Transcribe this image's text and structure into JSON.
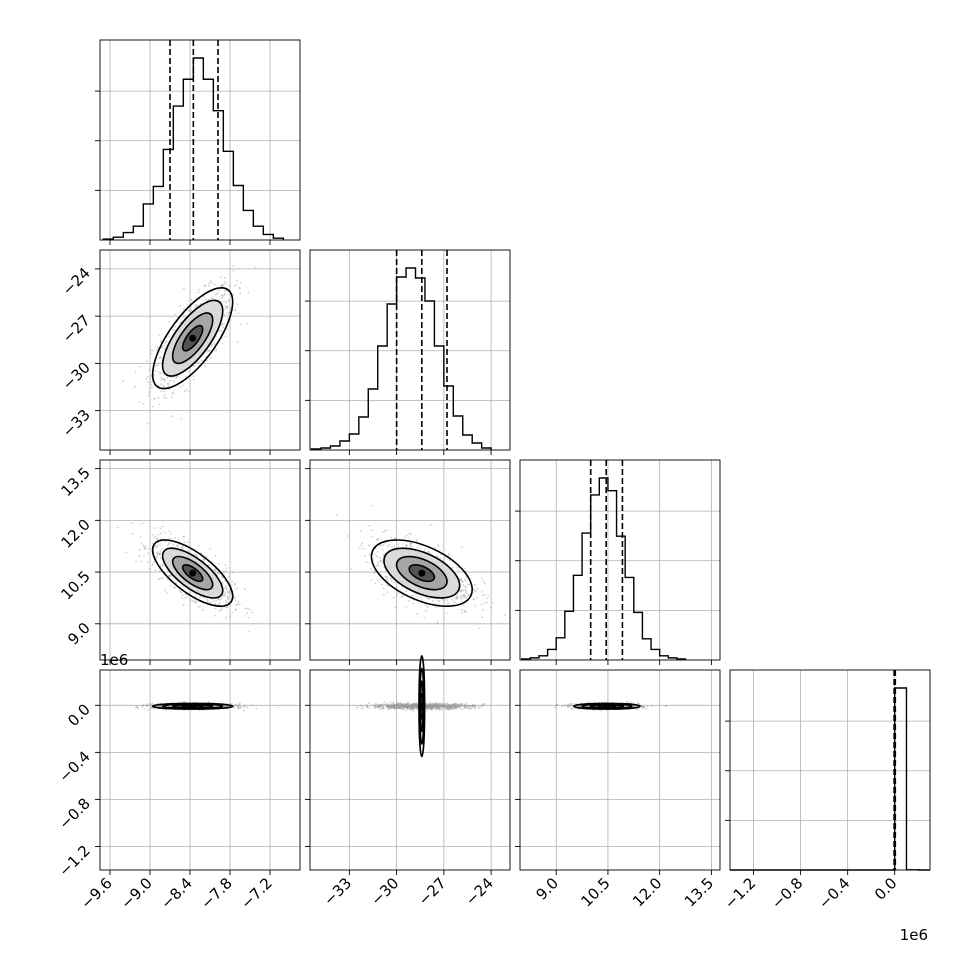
{
  "chart_data": {
    "type": "corner",
    "grid": true,
    "parameters": [
      {
        "index": 0,
        "range": [
          -9.75,
          -6.75
        ],
        "ticks": [
          -9.6,
          -9.0,
          -8.4,
          -7.8,
          -7.2
        ],
        "tick_labels": [
          "−9.6",
          "−9.0",
          "−8.4",
          "−7.8",
          "−7.2"
        ],
        "offset_text": ""
      },
      {
        "index": 1,
        "range": [
          -35.5,
          -22.8
        ],
        "ticks": [
          -33,
          -30,
          -27,
          -24
        ],
        "tick_labels": [
          "−33",
          "−30",
          "−27",
          "−24"
        ],
        "offset_text": ""
      },
      {
        "index": 2,
        "range": [
          7.95,
          13.75
        ],
        "ticks": [
          9.0,
          10.5,
          12.0,
          13.5
        ],
        "tick_labels": [
          "9.0",
          "10.5",
          "12.0",
          "13.5"
        ],
        "offset_text": ""
      },
      {
        "index": 3,
        "range": [
          -1.4,
          0.3
        ],
        "ticks": [
          -1.2,
          -0.8,
          -0.4,
          0.0
        ],
        "tick_labels": [
          "−1.2",
          "−0.8",
          "−0.4",
          "0.0"
        ],
        "offset_text": "1e6"
      }
    ],
    "marginals": [
      {
        "param": 0,
        "quantiles": [
          -8.7,
          -8.35,
          -7.98
        ],
        "bin_edges": [
          -9.7,
          -9.55,
          -9.4,
          -9.25,
          -9.1,
          -8.95,
          -8.8,
          -8.65,
          -8.5,
          -8.35,
          -8.2,
          -8.05,
          -7.9,
          -7.75,
          -7.6,
          -7.45,
          -7.3,
          -7.15,
          -7.0
        ],
        "counts": [
          1,
          3,
          8,
          15,
          39,
          58,
          98,
          145,
          174,
          197,
          174,
          140,
          96,
          59,
          32,
          15,
          6,
          2
        ]
      },
      {
        "param": 1,
        "quantiles": [
          -30.0,
          -28.4,
          -26.8
        ],
        "bin_edges": [
          -35.4,
          -34.8,
          -34.2,
          -33.6,
          -33.0,
          -32.4,
          -31.8,
          -31.2,
          -30.6,
          -30.0,
          -29.4,
          -28.8,
          -28.2,
          -27.6,
          -27.0,
          -26.4,
          -25.8,
          -25.2,
          -24.6,
          -24.0
        ],
        "counts": [
          1,
          2,
          4,
          9,
          16,
          33,
          61,
          104,
          146,
          173,
          182,
          172,
          149,
          104,
          64,
          34,
          15,
          7,
          2
        ]
      },
      {
        "param": 2,
        "quantiles": [
          10.0,
          10.45,
          10.92
        ],
        "bin_edges": [
          8.0,
          8.25,
          8.5,
          8.75,
          9.0,
          9.25,
          9.5,
          9.75,
          10.0,
          10.25,
          10.5,
          10.75,
          11.0,
          11.25,
          11.5,
          11.75,
          12.0,
          12.25,
          12.5,
          12.75
        ],
        "counts": [
          1,
          2,
          4,
          10,
          21,
          46,
          80,
          120,
          156,
          172,
          160,
          117,
          78,
          45,
          20,
          10,
          4,
          2,
          1
        ]
      },
      {
        "param": 3,
        "quantiles": [
          -0.005,
          0.0,
          0.005
        ],
        "bin_edges": [
          -1.4,
          -1.3,
          -1.2,
          -1.1,
          -1.0,
          -0.9,
          -0.8,
          -0.7,
          -0.6,
          -0.5,
          -0.4,
          -0.3,
          -0.2,
          -0.1,
          0.0,
          0.1,
          0.2,
          0.3
        ],
        "counts": [
          0,
          0,
          0,
          0,
          0,
          0,
          0,
          0,
          0,
          0,
          0,
          0,
          0,
          0,
          1000,
          1,
          0
        ]
      }
    ],
    "joints": [
      {
        "x_param": 0,
        "y_param": 1,
        "mean": [
          -8.36,
          -28.4
        ],
        "sd": [
          0.3,
          1.6
        ],
        "corr": 0.72
      },
      {
        "x_param": 0,
        "y_param": 2,
        "mean": [
          -8.36,
          10.47
        ],
        "sd": [
          0.3,
          0.48
        ],
        "corr": -0.7
      },
      {
        "x_param": 1,
        "y_param": 2,
        "mean": [
          -28.4,
          10.47
        ],
        "sd": [
          1.6,
          0.48
        ],
        "corr": -0.5
      },
      {
        "x_param": 0,
        "y_param": 3,
        "mean": [
          -8.36,
          -0.008
        ],
        "sd": [
          0.3,
          0.012
        ],
        "corr": 0.0
      },
      {
        "x_param": 1,
        "y_param": 3,
        "mean": [
          -28.4,
          -0.008
        ],
        "sd": [
          1.6,
          0.012
        ],
        "corr": 0.0
      },
      {
        "x_param": 2,
        "y_param": 3,
        "mean": [
          10.47,
          -0.008
        ],
        "sd": [
          0.48,
          0.012
        ],
        "corr": 0.0
      }
    ]
  }
}
